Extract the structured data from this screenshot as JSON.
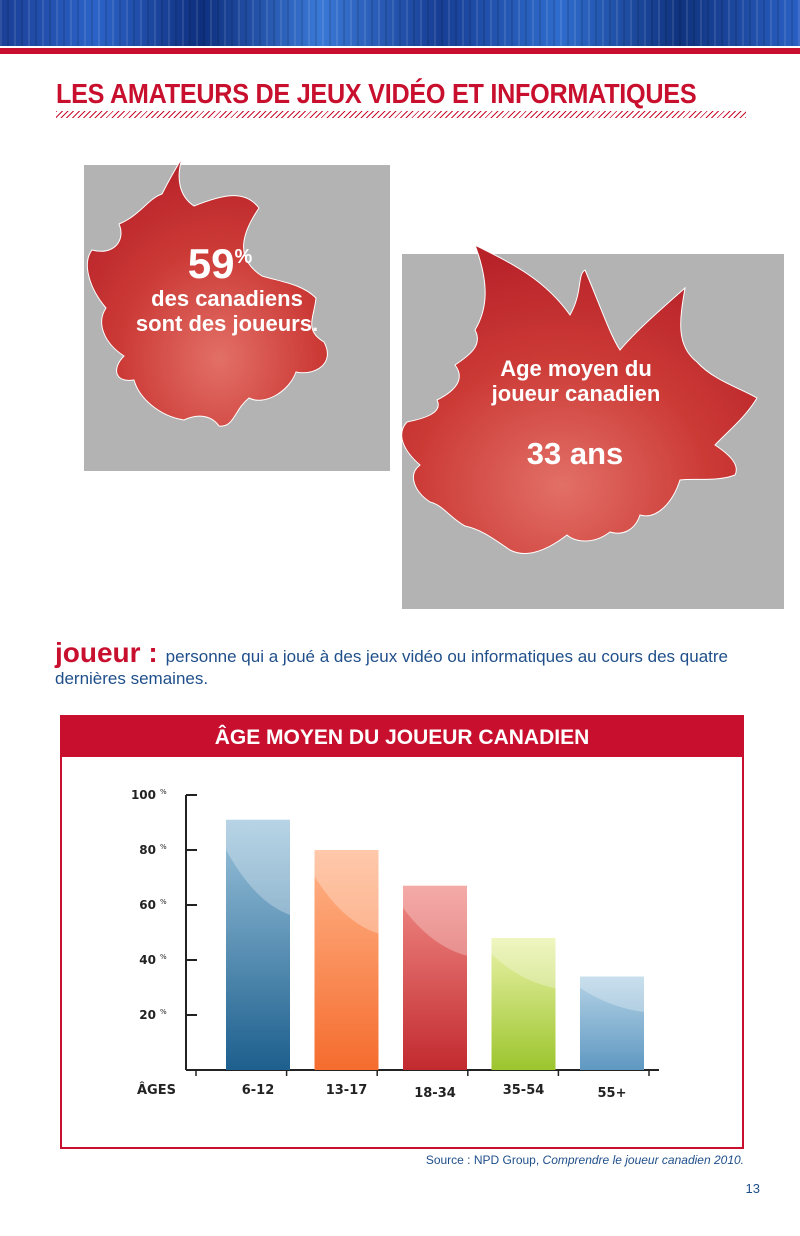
{
  "header": {
    "title": "LES AMATEURS DE JEUX VIDÉO ET INFORMATIQUES"
  },
  "stat1": {
    "value": "59",
    "unit": "%",
    "label": "des canadiens sont des joueurs."
  },
  "stat2": {
    "label": "Age moyen du joueur canadien",
    "value": "33 ans"
  },
  "definition": {
    "term": "joueur :",
    "text": "personne qui a joué à des jeux vidéo ou informatiques au cours des quatre dernières semaines."
  },
  "colors": {
    "accent_red": "#c8102e",
    "text_blue": "#1f4f8a",
    "box_gray": "#b3b3b3"
  },
  "chart_data": {
    "type": "bar",
    "title": "ÂGE MOYEN DU JOUEUR CANADIEN",
    "xlabel": "ÂGES",
    "ylabel": "",
    "categories": [
      "6-12",
      "13-17",
      "18-34",
      "35-54",
      "55+"
    ],
    "values": [
      91,
      80,
      67,
      48,
      34
    ],
    "ylim": [
      0,
      100
    ],
    "yticks": [
      {
        "value": 20,
        "label": "20",
        "unit": "%"
      },
      {
        "value": 40,
        "label": "40",
        "unit": "%"
      },
      {
        "value": 60,
        "label": "60",
        "unit": "%"
      },
      {
        "value": 80,
        "label": "80",
        "unit": "%"
      },
      {
        "value": 100,
        "label": "100",
        "unit": "%"
      }
    ],
    "bar_colors": [
      [
        "#9cc4dc",
        "#1d5f8e"
      ],
      [
        "#ffb48a",
        "#f56c2e"
      ],
      [
        "#f08a85",
        "#c22a2f"
      ],
      [
        "#eaf2a8",
        "#9cc52e"
      ],
      [
        "#b5d3e6",
        "#5f98c1"
      ]
    ],
    "grid": false,
    "legend": "none"
  },
  "footer": {
    "source_prefix": "Source : NPD Group, ",
    "source_title": "Comprendre le joueur canadien 2010.",
    "page_number": "13"
  }
}
